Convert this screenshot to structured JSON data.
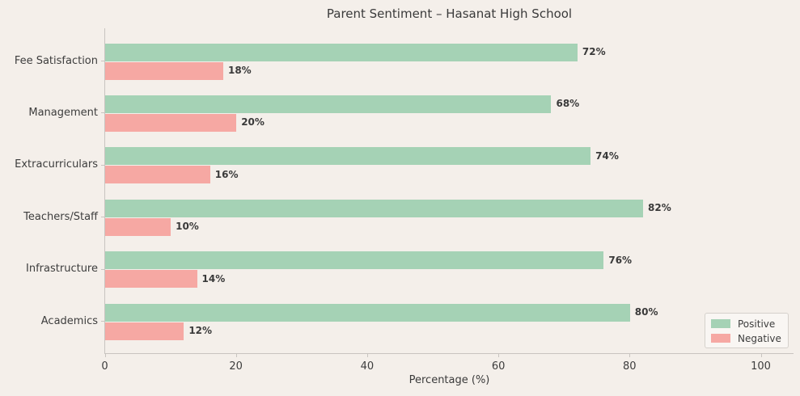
{
  "chart_data": {
    "type": "bar",
    "orientation": "horizontal",
    "title": "Parent Sentiment – Hasanat High School",
    "xlabel": "Percentage (%)",
    "ylabel": "",
    "categories": [
      "Fee Satisfaction",
      "Management",
      "Extracurriculars",
      "Teachers/Staff",
      "Infrastructure",
      "Academics"
    ],
    "categories_order_note": "top to bottom as displayed",
    "series": [
      {
        "name": "Positive",
        "color": "#a5d2b5",
        "values": [
          72,
          68,
          74,
          82,
          76,
          80
        ]
      },
      {
        "name": "Negative",
        "color": "#f6a8a3",
        "values": [
          18,
          20,
          16,
          10,
          14,
          12
        ]
      }
    ],
    "value_label_format": "{value}%",
    "xlim": [
      0,
      105
    ],
    "xticks": [
      0,
      20,
      40,
      60,
      80,
      100
    ],
    "grid": false,
    "legend": {
      "position": "lower right",
      "labels": [
        "Positive",
        "Negative"
      ]
    }
  },
  "colors": {
    "background": "#f4efea",
    "text": "#3a3a3a",
    "tick_text": "#3d3d3d",
    "spine": "#c8c4c0",
    "positive": "#a5d2b5",
    "negative": "#f6a8a3",
    "legend_bg": "#f9f6f3",
    "legend_border": "#d5d1cc"
  }
}
